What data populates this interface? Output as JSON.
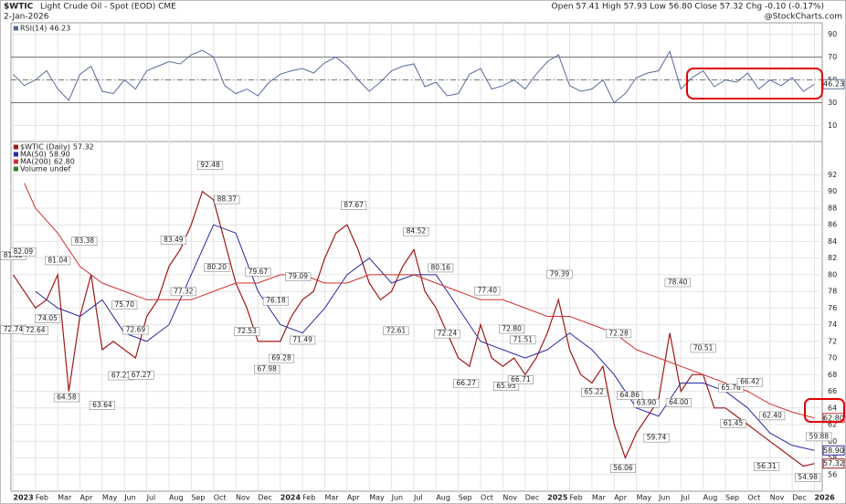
{
  "header": {
    "symbol": "$WTIC",
    "name": "Light Crude Oil - Spot (EOD) CME",
    "date": "2-Jan-2026",
    "quote": "Open 57.41 High 57.93 Low 56.80 Close 57.32 Chg -0.10 (-0.17%)",
    "source": "@StockCharts.com"
  },
  "chart_data": [
    {
      "type": "line",
      "series": [
        {
          "name": "RSI(14)",
          "color": "#5a6a9a",
          "x": [
            0,
            0.5,
            1,
            1.5,
            2,
            2.5,
            3,
            3.5,
            4,
            4.5,
            5,
            5.5,
            6,
            6.5,
            7,
            7.5,
            8,
            8.5,
            9,
            9.5,
            10,
            10.5,
            11,
            11.5,
            12,
            12.5,
            13,
            13.5,
            14,
            14.5,
            15,
            15.5,
            16,
            16.5,
            17,
            17.5,
            18,
            18.5,
            19,
            19.5,
            20,
            20.5,
            21,
            21.5,
            22,
            22.5,
            23,
            23.5,
            24,
            24.5,
            25,
            25.5,
            26,
            26.5,
            27,
            27.5,
            28,
            28.5,
            29,
            29.5,
            30,
            30.5,
            31,
            31.5,
            32,
            32.5,
            33,
            33.5,
            34,
            34.5,
            35,
            35.5,
            36
          ],
          "values": [
            55,
            45,
            50,
            58,
            42,
            32,
            55,
            62,
            40,
            38,
            50,
            42,
            58,
            62,
            66,
            64,
            72,
            76,
            70,
            45,
            38,
            42,
            36,
            48,
            55,
            58,
            60,
            56,
            65,
            70,
            62,
            50,
            40,
            48,
            58,
            62,
            64,
            44,
            48,
            36,
            38,
            55,
            60,
            42,
            45,
            50,
            42,
            55,
            66,
            72,
            45,
            40,
            42,
            50,
            30,
            38,
            52,
            56,
            58,
            75,
            42,
            52,
            58,
            44,
            50,
            48,
            56,
            42,
            50,
            45,
            52,
            40,
            46.23
          ]
        }
      ],
      "xlim": [
        -0.1,
        36.35
      ],
      "ylim": [
        0,
        100
      ],
      "yticks": [
        10,
        30,
        50,
        70,
        90
      ],
      "bands": [
        30,
        70
      ],
      "midline": 50,
      "grid": true
    },
    {
      "type": "line",
      "series": [
        {
          "name": "$WTIC (Daily)",
          "color": "#a01818",
          "x": [
            0,
            0.5,
            1,
            1.5,
            2,
            2.5,
            3,
            3.5,
            4,
            4.5,
            5,
            5.5,
            6,
            6.5,
            7,
            7.5,
            8,
            8.5,
            9,
            9.5,
            10,
            10.5,
            11,
            11.5,
            12,
            12.5,
            13,
            13.5,
            14,
            14.5,
            15,
            15.5,
            16,
            16.5,
            17,
            17.5,
            18,
            18.5,
            19,
            19.5,
            20,
            20.5,
            21,
            21.5,
            22,
            22.5,
            23,
            23.5,
            24,
            24.5,
            25,
            25.5,
            26,
            26.5,
            27,
            27.5,
            28,
            28.5,
            29,
            29.5,
            30,
            30.5,
            31,
            31.5,
            32,
            32.5,
            33,
            33.5,
            34,
            34.5,
            35,
            35.5,
            36
          ],
          "values": [
            80,
            78,
            76,
            77,
            80,
            66,
            75,
            80,
            71,
            72,
            71,
            70,
            75,
            77,
            81,
            83,
            86,
            90,
            89,
            84,
            79,
            76,
            72,
            72,
            72,
            75,
            77,
            78,
            82,
            85,
            86,
            83,
            79,
            77,
            78,
            81,
            83,
            78,
            76,
            73,
            70,
            69,
            74,
            70,
            69,
            70,
            68,
            70,
            73,
            77,
            71,
            68,
            67,
            69,
            62,
            58,
            61,
            63,
            65,
            73,
            66,
            68,
            68,
            64,
            64,
            63,
            62,
            61,
            60,
            59,
            58,
            57,
            57.32
          ]
        },
        {
          "name": "MA(50)",
          "color": "#2a2aa0",
          "last_label": "58.90",
          "x": [
            1,
            2,
            3,
            4,
            5,
            6,
            7,
            8,
            9,
            10,
            11,
            12,
            13,
            14,
            15,
            16,
            17,
            18,
            19,
            20,
            21,
            22,
            23,
            24,
            25,
            26,
            27,
            28,
            29,
            30,
            31,
            32,
            33,
            34,
            35,
            36
          ],
          "values": [
            78,
            76,
            75,
            77,
            73,
            72,
            74,
            80,
            86,
            85,
            78,
            74,
            73,
            76,
            80,
            82,
            79,
            80,
            80,
            76,
            72,
            71,
            70,
            71,
            73,
            71,
            68,
            64,
            63,
            67,
            67,
            66,
            64,
            61,
            59.5,
            58.9
          ]
        },
        {
          "name": "MA(200)",
          "color": "#d03030",
          "last_label": "62.80",
          "x": [
            0.5,
            1,
            2,
            3,
            4,
            5,
            6,
            7,
            8,
            9,
            10,
            11,
            12,
            13,
            14,
            15,
            16,
            17,
            18,
            19,
            20,
            21,
            22,
            23,
            24,
            25,
            26,
            27,
            28,
            29,
            30,
            31,
            32,
            33,
            34,
            35,
            36
          ],
          "values": [
            91,
            88,
            85,
            81,
            79,
            78,
            77,
            77,
            77,
            78,
            79,
            79,
            80,
            80,
            79,
            79,
            80,
            80,
            80,
            79,
            78,
            77,
            77,
            76,
            75,
            75,
            74,
            73,
            71,
            70,
            69,
            68,
            67,
            66,
            64.5,
            63.5,
            62.8
          ]
        }
      ],
      "volume_label": "Volume undef",
      "callouts": {
        "x": [
          0,
          0.45,
          0,
          1.0,
          1.55,
          2.0,
          2.4,
          3.2,
          4.0,
          5.0,
          4.85,
          5.75,
          5.5,
          7.65,
          7.2,
          8.85,
          9.6,
          9.15,
          11.0,
          10.5,
          11.4,
          11.8,
          12.05,
          12.8,
          13.0,
          15.3,
          17.2,
          18.1,
          19.2,
          19.5,
          20.35,
          21.3,
          22.4,
          22.15,
          22.9,
          22.8,
          24.55,
          27.2,
          26.1,
          27.7,
          27.4,
          28.45,
          28.9,
          29.85,
          29.9,
          31.0,
          32.25,
          33.1,
          32.35,
          34.1,
          33.85,
          36.2,
          35.7
        ],
        "values": [
          81.62,
          82.09,
          72.74,
          72.64,
          74.05,
          81.04,
          64.58,
          83.38,
          63.64,
          75.7,
          67.21,
          67.27,
          72.69,
          77.32,
          83.49,
          92.48,
          88.37,
          80.2,
          79.67,
          72.53,
          67.98,
          76.18,
          69.28,
          79.09,
          71.49,
          87.67,
          72.61,
          84.52,
          80.16,
          72.24,
          66.27,
          77.4,
          72.8,
          65.95,
          71.51,
          66.71,
          79.39,
          72.28,
          65.22,
          64.86,
          56.06,
          63.9,
          59.74,
          78.4,
          64,
          70.51,
          65.76,
          66.42,
          61.45,
          62.4,
          56.31,
          59.88,
          54.98
        ],
        "value_labels": [
          "81.62",
          "82.09",
          "72.74",
          "72.64",
          "74.05",
          "81.04",
          "64.58",
          "83.38",
          "63.64",
          "75.70",
          "67.21",
          "67.27",
          "72.69",
          "77.32",
          "83.49",
          "92.48",
          "88.37",
          "80.20",
          "79.67",
          "72.53",
          "67.98",
          "76.18",
          "69.28",
          "79.09",
          "71.49",
          "87.67",
          "72.61",
          "84.52",
          "80.16",
          "72.24",
          "66.27",
          "77.40",
          "72.80",
          "65.95",
          "71.51",
          "66.71",
          "79.39",
          "72.28",
          "65.22",
          "64.86",
          "56.06",
          "63.90",
          "59.74",
          "78.40",
          "64.00",
          "70.51",
          "65.76",
          "66.42",
          "61.45",
          "62.40",
          "56.31",
          "59.88",
          "54.98"
        ]
      },
      "xlim": [
        -0.1,
        36.35
      ],
      "ylim": [
        54,
        96
      ],
      "yticks": [
        56,
        58,
        60,
        62,
        64,
        66,
        68,
        70,
        72,
        74,
        76,
        78,
        80,
        82,
        84,
        86,
        88,
        90,
        92
      ],
      "xticks": [
        {
          "value": 0,
          "label": "2023"
        },
        {
          "value": 1,
          "label": "Feb"
        },
        {
          "value": 2,
          "label": "Mar"
        },
        {
          "value": 3,
          "label": "Apr"
        },
        {
          "value": 4,
          "label": "May"
        },
        {
          "value": 5,
          "label": "Jun"
        },
        {
          "value": 6,
          "label": "Jul"
        },
        {
          "value": 7,
          "label": "Aug"
        },
        {
          "value": 8,
          "label": "Sep"
        },
        {
          "value": 9,
          "label": "Oct"
        },
        {
          "value": 10,
          "label": "Nov"
        },
        {
          "value": 11,
          "label": "Dec"
        },
        {
          "value": 12,
          "label": "2024"
        },
        {
          "value": 13,
          "label": "Feb"
        },
        {
          "value": 14,
          "label": "Mar"
        },
        {
          "value": 15,
          "label": "Apr"
        },
        {
          "value": 16,
          "label": "May"
        },
        {
          "value": 17,
          "label": "Jun"
        },
        {
          "value": 18,
          "label": "Jul"
        },
        {
          "value": 19,
          "label": "Aug"
        },
        {
          "value": 20,
          "label": "Sep"
        },
        {
          "value": 21,
          "label": "Oct"
        },
        {
          "value": 22,
          "label": "Nov"
        },
        {
          "value": 23,
          "label": "Dec"
        },
        {
          "value": 24,
          "label": "2025"
        },
        {
          "value": 25,
          "label": "Feb"
        },
        {
          "value": 26,
          "label": "Mar"
        },
        {
          "value": 27,
          "label": "Apr"
        },
        {
          "value": 28,
          "label": "May"
        },
        {
          "value": 29,
          "label": "Jun"
        },
        {
          "value": 30,
          "label": "Jul"
        },
        {
          "value": 31,
          "label": "Aug"
        },
        {
          "value": 32,
          "label": "Sep"
        },
        {
          "value": 33,
          "label": "Oct"
        },
        {
          "value": 34,
          "label": "Nov"
        },
        {
          "value": 35,
          "label": "Dec"
        },
        {
          "value": 36,
          "label": "2026"
        }
      ],
      "grid": true
    }
  ]
}
